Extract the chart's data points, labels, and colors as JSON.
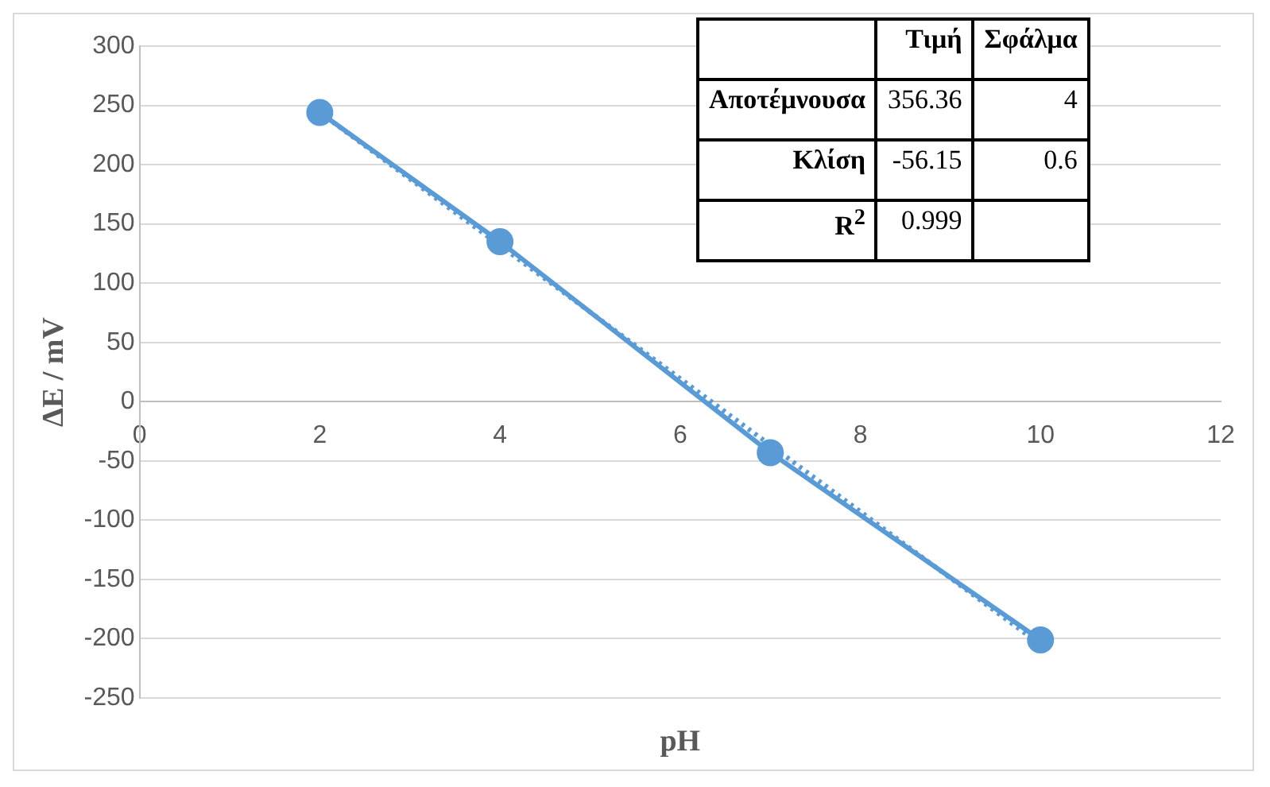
{
  "chart_data": {
    "type": "line",
    "xlabel": "pH",
    "ylabel": "ΔE / mV",
    "xlim": [
      0,
      12
    ],
    "xticks": [
      0,
      2,
      4,
      6,
      8,
      10,
      12
    ],
    "ylim": [
      -250,
      300
    ],
    "yticks": [
      -250,
      -200,
      -150,
      -100,
      -50,
      0,
      50,
      100,
      150,
      200,
      250,
      300
    ],
    "grid": "y",
    "legend": false,
    "series": [
      {
        "color": "#5b9bd5",
        "x": [
          2,
          4,
          7,
          10
        ],
        "values": [
          244,
          135,
          -43,
          -201
        ],
        "marker": "circle",
        "line_style": "solid"
      },
      {
        "color": "#5b9bd5",
        "x": [
          2,
          10
        ],
        "values": [
          244,
          -205
        ],
        "marker": "none",
        "line_style": "dotted"
      }
    ],
    "annotations": [
      "Τιμή",
      "Σφάλμα",
      "Αποτέμνουσα",
      "356.36",
      "4",
      "Κλίση",
      "-56.15",
      "0.6",
      "R$^{2}$",
      "0.999"
    ]
  }
}
